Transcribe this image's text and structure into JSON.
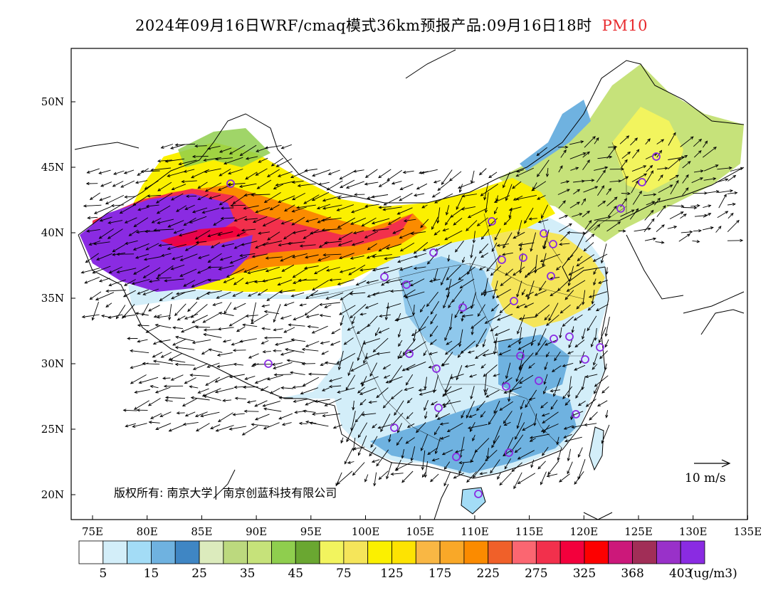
{
  "title": {
    "main": "2024年09月16日WRF/cmaq模式36km预报产品:09月16日18时",
    "variable": "PM10",
    "variable_color": "#e8292d"
  },
  "map": {
    "lat_ticks": [
      "50N",
      "45N",
      "40N",
      "35N",
      "30N",
      "25N",
      "20N"
    ],
    "lon_ticks": [
      "75E",
      "80E",
      "85E",
      "90E",
      "95E",
      "100E",
      "105E",
      "110E",
      "115E",
      "120E",
      "125E",
      "130E",
      "135E"
    ],
    "copyright": "版权所有: 南京大学│ 南京创蓝科技有限公司",
    "wind_reference": "10 m/s",
    "colors": {
      "dust_core": "#8a2be2",
      "dust_high": "#e8174f",
      "dust_mid": "#ffa500",
      "yellow": "#f5f03c",
      "green": "#8fce4e",
      "light_blue": "#d3eef9",
      "mid_blue": "#6fb2e0",
      "dark_blue": "#3f86c4"
    }
  },
  "colorbar": {
    "colors": [
      "#ffffff",
      "#d3eef9",
      "#a3dcf6",
      "#6fb2e0",
      "#3f86c4",
      "#dcebbd",
      "#bcd97e",
      "#c6e27a",
      "#8fce4e",
      "#6aa731",
      "#f2f45e",
      "#f5e55a",
      "#fbf000",
      "#fde302",
      "#f9b744",
      "#f9a828",
      "#fb8b00",
      "#f06029",
      "#fb6671",
      "#f2304c",
      "#f3003c",
      "#fd0000",
      "#cc187a",
      "#a12e57",
      "#9931c9",
      "#8a2be2"
    ],
    "labels": [
      "5",
      "15",
      "25",
      "35",
      "45",
      "75",
      "125",
      "175",
      "225",
      "275",
      "325",
      "368",
      "403"
    ],
    "units": "(ug/m3)"
  }
}
